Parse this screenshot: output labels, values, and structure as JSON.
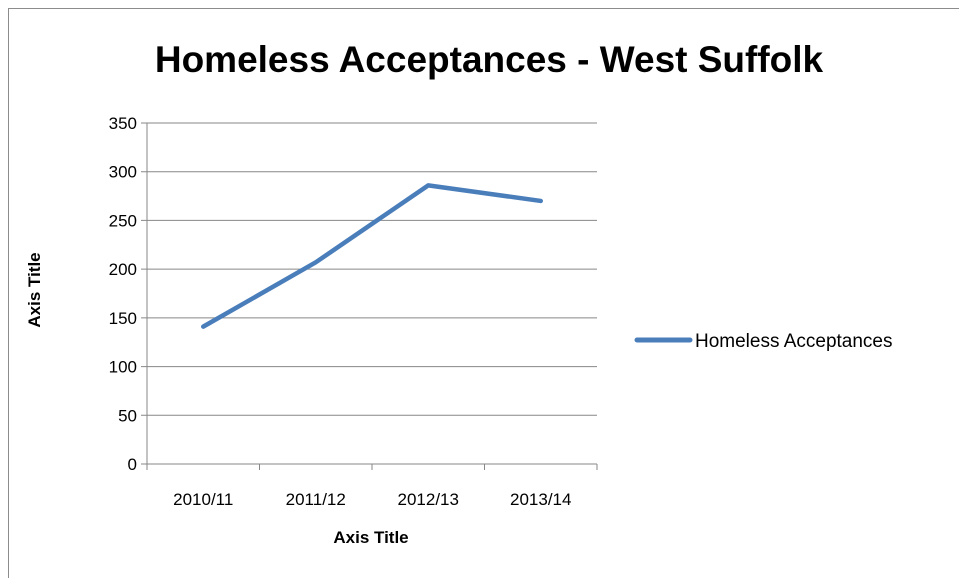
{
  "chart_data": {
    "type": "line",
    "title": "Homeless Acceptances - West Suffolk",
    "xlabel": "Axis Title",
    "ylabel": "Axis Title",
    "categories": [
      "2010/11",
      "2011/12",
      "2012/13",
      "2013/14"
    ],
    "series": [
      {
        "name": "Homeless Acceptances",
        "values": [
          141,
          207,
          286,
          270
        ],
        "color": "#4a7ebb"
      }
    ],
    "ylim": [
      0,
      350
    ],
    "yticks": [
      0,
      50,
      100,
      150,
      200,
      250,
      300,
      350
    ],
    "grid": true,
    "legend_position": "right"
  }
}
